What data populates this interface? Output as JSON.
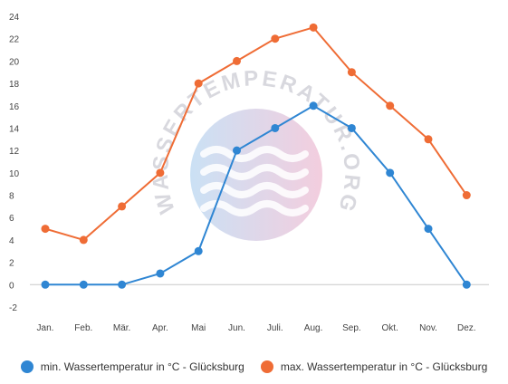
{
  "chart_data": {
    "type": "line",
    "categories": [
      "Jan.",
      "Feb.",
      "Mär.",
      "Apr.",
      "Mai",
      "Jun.",
      "Juli.",
      "Aug.",
      "Sep.",
      "Okt.",
      "Nov.",
      "Dez."
    ],
    "series": [
      {
        "name": "min. Wassertemperatur in °C - Glücksburg",
        "color": "#2f86d3",
        "values": [
          0,
          0,
          0,
          1,
          3,
          12,
          14,
          16,
          14,
          10,
          5,
          0
        ]
      },
      {
        "name": "max. Wassertemperatur in °C - Glücksburg",
        "color": "#ef6c35",
        "values": [
          5,
          4,
          7,
          10,
          18,
          20,
          22,
          23,
          19,
          16,
          13,
          8
        ]
      }
    ],
    "ylim": [
      -2,
      24
    ],
    "yticks": [
      24,
      22,
      20,
      18,
      16,
      14,
      12,
      10,
      8,
      6,
      4,
      2,
      0,
      -2
    ],
    "grid": false,
    "legend_position": "bottom"
  },
  "watermark": {
    "text": "WASSERTEMPERATUR.ORG"
  }
}
